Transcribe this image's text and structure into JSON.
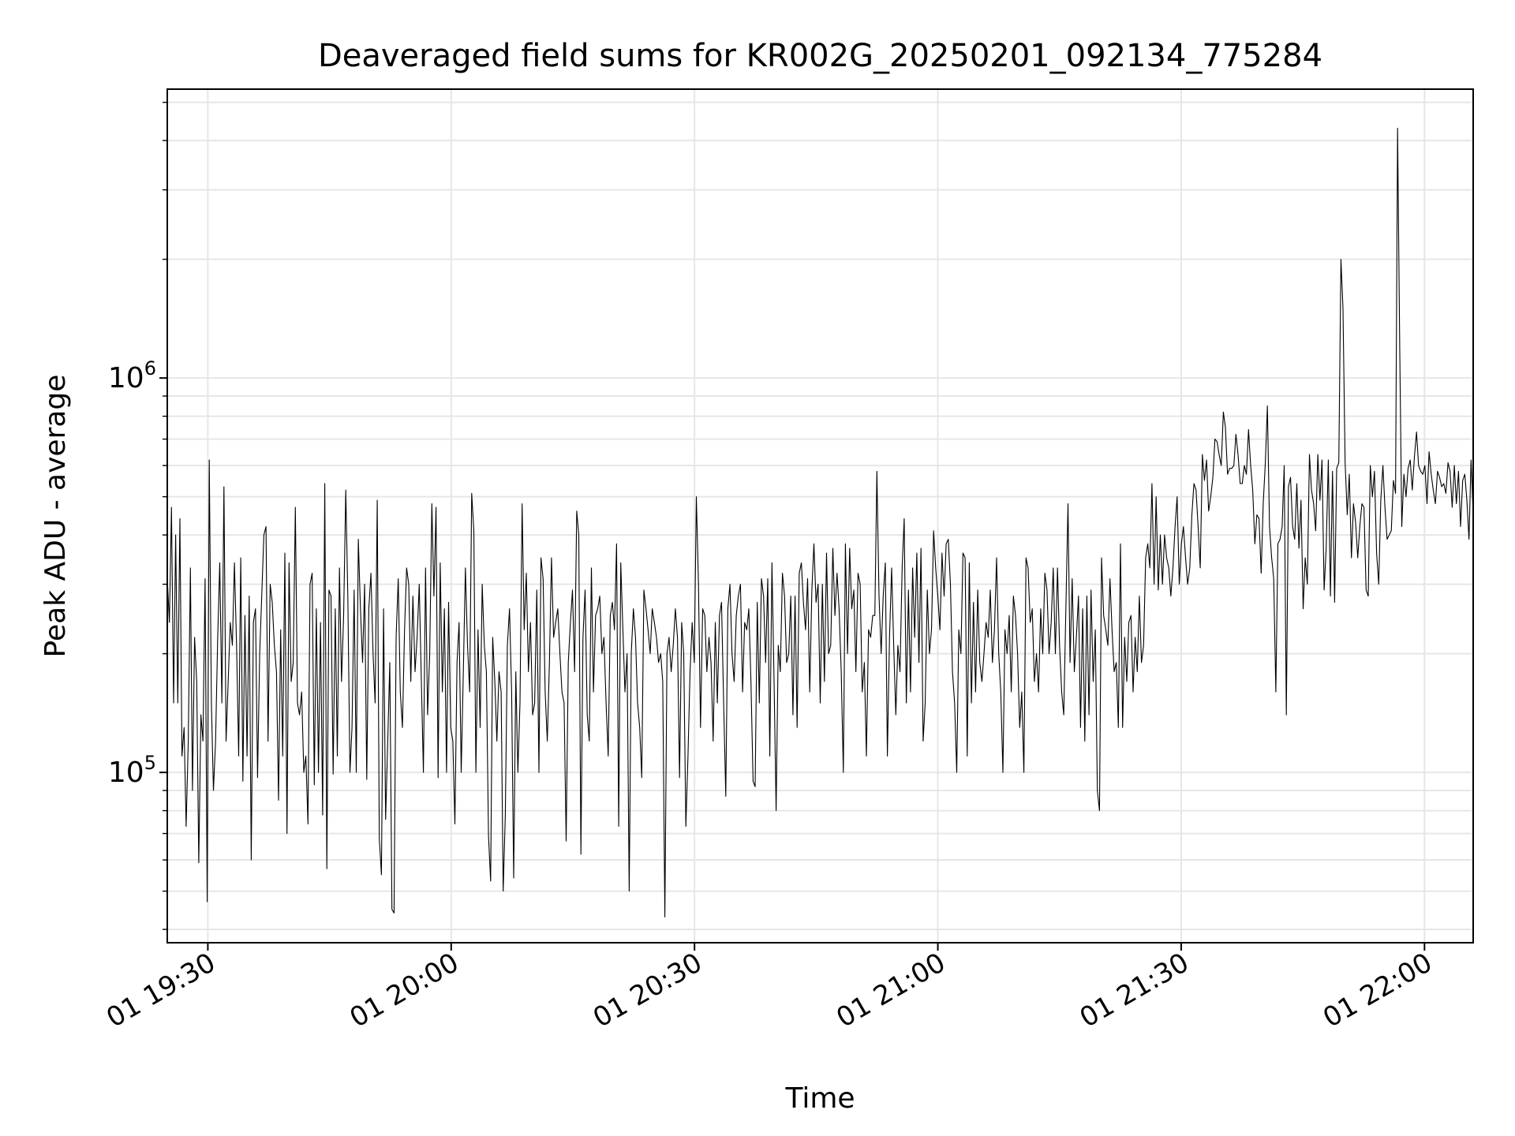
{
  "chart_data": {
    "type": "line",
    "title": "Deaveraged field sums for KR002G_20250201_092134_775284",
    "xlabel": "Time",
    "ylabel": "Peak ADU - average",
    "x_start": "01 19:25",
    "x_end": "01 22:06",
    "xlim": [
      "01 19:25",
      "01 22:06"
    ],
    "ylim": [
      37000,
      5400000
    ],
    "yscale": "log",
    "grid": true,
    "line_color": "#000000",
    "grid_color": "#e6e6e6",
    "x_ticks": [
      {
        "label": "01 19:30",
        "time": "01 19:30"
      },
      {
        "label": "01 20:00",
        "time": "01 20:00"
      },
      {
        "label": "01 20:30",
        "time": "01 20:30"
      },
      {
        "label": "01 21:00",
        "time": "01 21:00"
      },
      {
        "label": "01 21:30",
        "time": "01 21:30"
      },
      {
        "label": "01 22:00",
        "time": "01 22:00"
      }
    ],
    "y_ticks": [
      {
        "label": "10",
        "exp": "5",
        "value": 100000
      },
      {
        "label": "10",
        "exp": "6",
        "value": 1000000
      }
    ],
    "series": [
      {
        "values": [
          310000,
          240000,
          470000,
          150000,
          400000,
          150000,
          440000,
          110000,
          130000,
          73000,
          120000,
          330000,
          90000,
          220000,
          170000,
          59000,
          140000,
          120000,
          310000,
          47000,
          620000,
          150000,
          90000,
          120000,
          220000,
          340000,
          150000,
          530000,
          120000,
          170000,
          240000,
          210000,
          340000,
          210000,
          110000,
          350000,
          95000,
          250000,
          110000,
          280000,
          60000,
          240000,
          260000,
          97000,
          200000,
          280000,
          400000,
          420000,
          120000,
          300000,
          270000,
          210000,
          180000,
          85000,
          230000,
          110000,
          360000,
          70000,
          340000,
          170000,
          190000,
          470000,
          150000,
          140000,
          160000,
          100000,
          110000,
          74000,
          300000,
          320000,
          93000,
          260000,
          100000,
          240000,
          78000,
          540000,
          57000,
          290000,
          280000,
          99000,
          260000,
          110000,
          330000,
          170000,
          250000,
          520000,
          280000,
          100000,
          130000,
          290000,
          100000,
          390000,
          260000,
          190000,
          300000,
          96000,
          260000,
          320000,
          200000,
          150000,
          490000,
          68000,
          55000,
          260000,
          76000,
          120000,
          190000,
          45000,
          44000,
          220000,
          310000,
          160000,
          130000,
          230000,
          330000,
          300000,
          170000,
          280000,
          180000,
          220000,
          300000,
          170000,
          100000,
          330000,
          140000,
          200000,
          480000,
          280000,
          470000,
          97000,
          340000,
          160000,
          260000,
          100000,
          270000,
          130000,
          120000,
          74000,
          190000,
          240000,
          100000,
          180000,
          330000,
          210000,
          160000,
          510000,
          410000,
          100000,
          230000,
          130000,
          300000,
          210000,
          180000,
          69000,
          53000,
          220000,
          170000,
          120000,
          180000,
          160000,
          50000,
          78000,
          210000,
          260000,
          160000,
          54000,
          180000,
          100000,
          150000,
          480000,
          230000,
          320000,
          180000,
          240000,
          140000,
          150000,
          290000,
          100000,
          350000,
          310000,
          160000,
          120000,
          190000,
          350000,
          220000,
          240000,
          260000,
          200000,
          160000,
          150000,
          67000,
          190000,
          240000,
          290000,
          180000,
          460000,
          400000,
          62000,
          220000,
          290000,
          140000,
          120000,
          330000,
          160000,
          250000,
          260000,
          280000,
          200000,
          220000,
          150000,
          110000,
          250000,
          270000,
          230000,
          380000,
          73000,
          340000,
          230000,
          160000,
          200000,
          50000,
          200000,
          260000,
          220000,
          150000,
          130000,
          97000,
          290000,
          260000,
          230000,
          200000,
          260000,
          240000,
          220000,
          190000,
          200000,
          170000,
          43000,
          200000,
          220000,
          180000,
          210000,
          260000,
          220000,
          97000,
          240000,
          200000,
          73000,
          110000,
          180000,
          240000,
          190000,
          500000,
          300000,
          130000,
          260000,
          250000,
          180000,
          220000,
          190000,
          120000,
          240000,
          150000,
          250000,
          270000,
          150000,
          87000,
          260000,
          300000,
          200000,
          170000,
          250000,
          280000,
          300000,
          160000,
          240000,
          230000,
          260000,
          170000,
          95000,
          92000,
          270000,
          150000,
          310000,
          280000,
          190000,
          310000,
          110000,
          340000,
          170000,
          80000,
          210000,
          180000,
          320000,
          280000,
          190000,
          200000,
          280000,
          140000,
          280000,
          130000,
          320000,
          340000,
          270000,
          230000,
          310000,
          160000,
          290000,
          380000,
          270000,
          300000,
          150000,
          300000,
          170000,
          360000,
          200000,
          210000,
          370000,
          250000,
          320000,
          260000,
          180000,
          100000,
          380000,
          200000,
          370000,
          260000,
          290000,
          180000,
          320000,
          300000,
          160000,
          190000,
          110000,
          230000,
          220000,
          250000,
          250000,
          580000,
          280000,
          200000,
          280000,
          340000,
          110000,
          220000,
          330000,
          210000,
          140000,
          210000,
          180000,
          330000,
          440000,
          150000,
          290000,
          160000,
          330000,
          220000,
          360000,
          190000,
          370000,
          120000,
          150000,
          290000,
          200000,
          230000,
          410000,
          330000,
          280000,
          230000,
          360000,
          280000,
          380000,
          390000,
          300000,
          180000,
          150000,
          100000,
          230000,
          200000,
          360000,
          350000,
          110000,
          340000,
          150000,
          270000,
          160000,
          290000,
          190000,
          170000,
          200000,
          240000,
          220000,
          290000,
          190000,
          230000,
          350000,
          200000,
          160000,
          100000,
          230000,
          200000,
          250000,
          160000,
          280000,
          250000,
          200000,
          130000,
          160000,
          100000,
          350000,
          330000,
          240000,
          260000,
          170000,
          200000,
          160000,
          260000,
          200000,
          320000,
          290000,
          200000,
          240000,
          330000,
          200000,
          330000,
          210000,
          160000,
          140000,
          260000,
          480000,
          190000,
          310000,
          180000,
          220000,
          280000,
          130000,
          260000,
          120000,
          280000,
          140000,
          290000,
          170000,
          230000,
          90000,
          80000,
          350000,
          250000,
          230000,
          210000,
          310000,
          230000,
          180000,
          190000,
          130000,
          380000,
          130000,
          220000,
          170000,
          240000,
          250000,
          160000,
          220000,
          180000,
          280000,
          190000,
          210000,
          350000,
          380000,
          330000,
          540000,
          300000,
          500000,
          290000,
          400000,
          300000,
          400000,
          350000,
          330000,
          280000,
          330000,
          420000,
          500000,
          300000,
          380000,
          420000,
          350000,
          300000,
          330000,
          450000,
          540000,
          520000,
          420000,
          330000,
          640000,
          550000,
          620000,
          460000,
          500000,
          560000,
          700000,
          690000,
          640000,
          600000,
          820000,
          750000,
          570000,
          590000,
          590000,
          600000,
          720000,
          640000,
          540000,
          540000,
          600000,
          570000,
          740000,
          600000,
          520000,
          380000,
          450000,
          440000,
          320000,
          480000,
          610000,
          850000,
          420000,
          350000,
          310000,
          160000,
          380000,
          390000,
          420000,
          600000,
          140000,
          530000,
          560000,
          420000,
          390000,
          540000,
          370000,
          490000,
          260000,
          350000,
          300000,
          640000,
          520000,
          480000,
          410000,
          640000,
          490000,
          620000,
          290000,
          370000,
          620000,
          280000,
          580000,
          270000,
          590000,
          610000,
          2000000,
          1500000,
          610000,
          450000,
          570000,
          350000,
          480000,
          430000,
          350000,
          420000,
          480000,
          470000,
          290000,
          280000,
          600000,
          500000,
          580000,
          360000,
          300000,
          490000,
          600000,
          470000,
          390000,
          400000,
          410000,
          550000,
          510000,
          4300000,
          1200000,
          420000,
          570000,
          500000,
          590000,
          620000,
          520000,
          630000,
          730000,
          600000,
          580000,
          570000,
          600000,
          480000,
          650000,
          570000,
          520000,
          480000,
          580000,
          560000,
          530000,
          540000,
          510000,
          610000,
          580000,
          470000,
          600000,
          480000,
          580000,
          420000,
          550000,
          570000,
          490000,
          390000,
          620000,
          450000
        ]
      }
    ]
  }
}
